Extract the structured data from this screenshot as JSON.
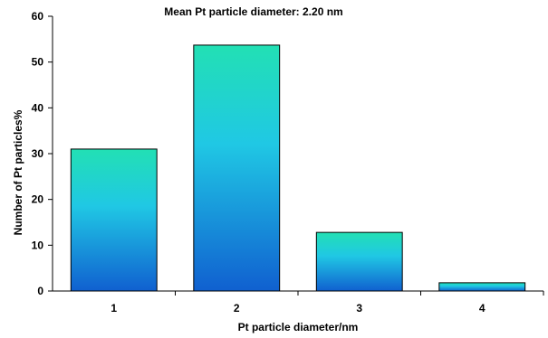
{
  "chart_data": {
    "type": "bar",
    "title": "Mean Pt particle diameter: 2.20 nm",
    "xlabel": "Pt particle diameter/nm",
    "ylabel": "Number of Pt particles%",
    "categories": [
      "1",
      "2",
      "3",
      "4"
    ],
    "values": [
      31,
      53.7,
      12.8,
      1.8
    ],
    "ylim": [
      0,
      60
    ],
    "yticks": [
      "0",
      "10",
      "20",
      "30",
      "40",
      "50",
      "60"
    ],
    "grid": false,
    "legend": "none",
    "colors": {
      "bar_top": "#22e0b4",
      "bar_mid": "#20c8e4",
      "bar_bottom": "#1060d0",
      "bar_edge": "#000000",
      "axis": "#000000"
    }
  }
}
